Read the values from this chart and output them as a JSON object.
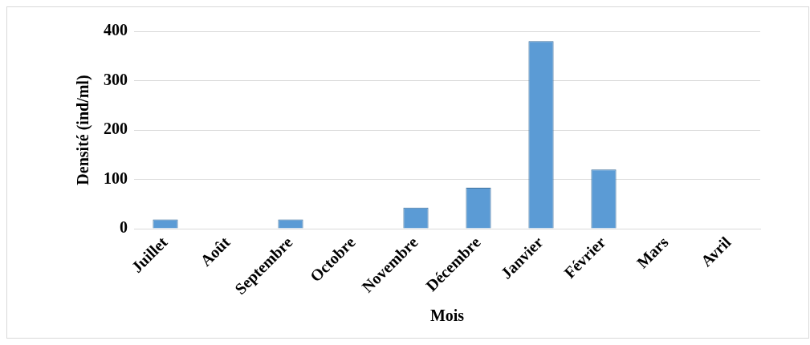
{
  "chart_data": {
    "type": "bar",
    "xlabel": "Mois",
    "ylabel": "Densité (ind/ml)",
    "categories": [
      "Juillet",
      "Août",
      "Septembre",
      "Octobre",
      "Novembre",
      "Décembre",
      "Janvier",
      "Février",
      "Mars",
      "Avril"
    ],
    "values": [
      19,
      0,
      19,
      0,
      43,
      83,
      380,
      120,
      0,
      0
    ],
    "color": "#5b9bd5",
    "ylim": [
      0,
      400
    ],
    "yticks": [
      0,
      100,
      200,
      300,
      400
    ],
    "grid": "y"
  }
}
